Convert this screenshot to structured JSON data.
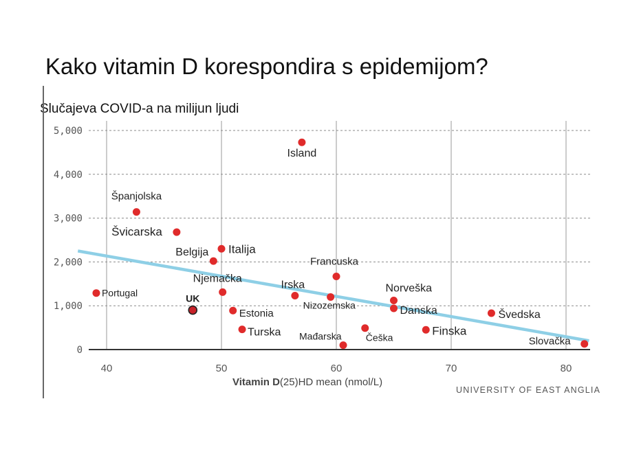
{
  "chart_data": {
    "type": "scatter",
    "title": "Kako vitamin D korespondira s epidemijom?",
    "ylabel": "Slučajeva  COVID-a na milijun ljudi",
    "xlabel_main": "Vitamin D",
    "xlabel_rest": "(25)HD mean (nmol/L)",
    "source": "UNIVERSITY OF EAST ANGLIA",
    "xlim": [
      39,
      82
    ],
    "ylim": [
      0,
      5000
    ],
    "x_ticks": [
      40,
      50,
      60,
      70,
      80
    ],
    "y_ticks": [
      0,
      1000,
      2000,
      3000,
      4000,
      5000
    ],
    "y_tick_labels": [
      "0",
      "1,000",
      "2,000",
      "3,000",
      "4,000",
      "5,000"
    ],
    "grid": true,
    "trendline": {
      "x": [
        37.5,
        82
      ],
      "y": [
        2250,
        200
      ],
      "color": "#8ecfe6"
    },
    "point_color": "#e02b2b",
    "highlight_color": "#c8222a",
    "points": [
      {
        "name": "Island",
        "x": 57.0,
        "y": 4730
      },
      {
        "name": "Španjolska",
        "x": 42.6,
        "y": 3140
      },
      {
        "name": "Švicarska",
        "x": 46.1,
        "y": 2680
      },
      {
        "name": "Italija",
        "x": 50.0,
        "y": 2300
      },
      {
        "name": "Belgija",
        "x": 49.3,
        "y": 2020
      },
      {
        "name": "Francuska",
        "x": 60.0,
        "y": 1670
      },
      {
        "name": "Njemačka",
        "x": 50.1,
        "y": 1310
      },
      {
        "name": "Irska",
        "x": 56.4,
        "y": 1230
      },
      {
        "name": "Nizozemska",
        "x": 59.5,
        "y": 1200
      },
      {
        "name": "Norveška",
        "x": 65.0,
        "y": 1120
      },
      {
        "name": "Danska",
        "x": 65.0,
        "y": 940
      },
      {
        "name": "Portugal",
        "x": 39.1,
        "y": 1290
      },
      {
        "name": "UK",
        "x": 47.5,
        "y": 900,
        "highlight": true
      },
      {
        "name": "Estonia",
        "x": 51.0,
        "y": 890
      },
      {
        "name": "Švedska",
        "x": 73.5,
        "y": 830
      },
      {
        "name": "Turska",
        "x": 51.8,
        "y": 460
      },
      {
        "name": "Finska",
        "x": 67.8,
        "y": 450
      },
      {
        "name": "Češka",
        "x": 62.5,
        "y": 490
      },
      {
        "name": "Mađarska",
        "x": 60.6,
        "y": 100
      },
      {
        "name": "Slovačka",
        "x": 81.6,
        "y": 130
      }
    ]
  }
}
